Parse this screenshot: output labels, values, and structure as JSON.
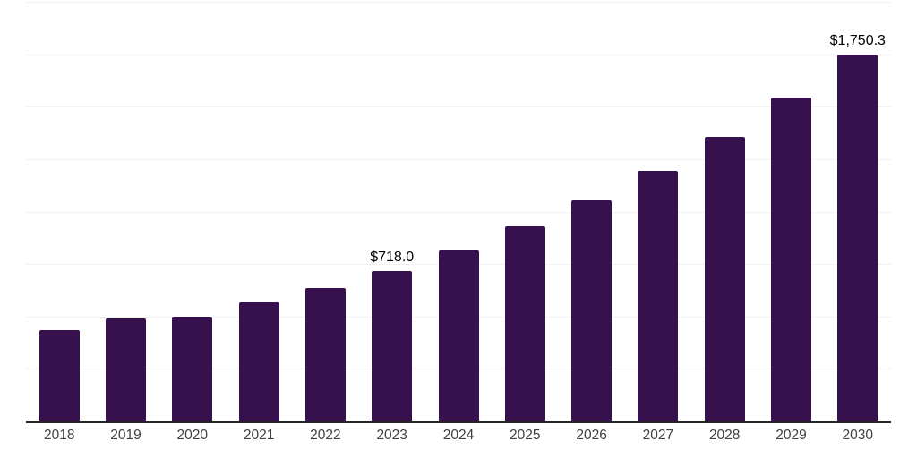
{
  "chart_data": {
    "type": "bar",
    "title": "",
    "xlabel": "",
    "ylabel": "",
    "categories": [
      "2018",
      "2019",
      "2020",
      "2021",
      "2022",
      "2023",
      "2024",
      "2025",
      "2026",
      "2027",
      "2028",
      "2029",
      "2030"
    ],
    "values": [
      436,
      490,
      500,
      566,
      637,
      718.0,
      815,
      928,
      1052,
      1195,
      1357,
      1542,
      1750.3
    ],
    "value_labels": [
      "",
      "",
      "",
      "",
      "",
      "$718.0",
      "",
      "",
      "",
      "",
      "",
      "",
      "$1,750.3"
    ],
    "ylim": [
      0,
      2000
    ],
    "grid_step": 250,
    "grid": "horizontal-only",
    "legend_position": "none",
    "colors": {
      "bar": "#36114E",
      "axis_line": "#262626",
      "gridline": "#f2f2f2",
      "tick_label": "#404040",
      "data_label": "#000000",
      "background": "#ffffff"
    }
  }
}
